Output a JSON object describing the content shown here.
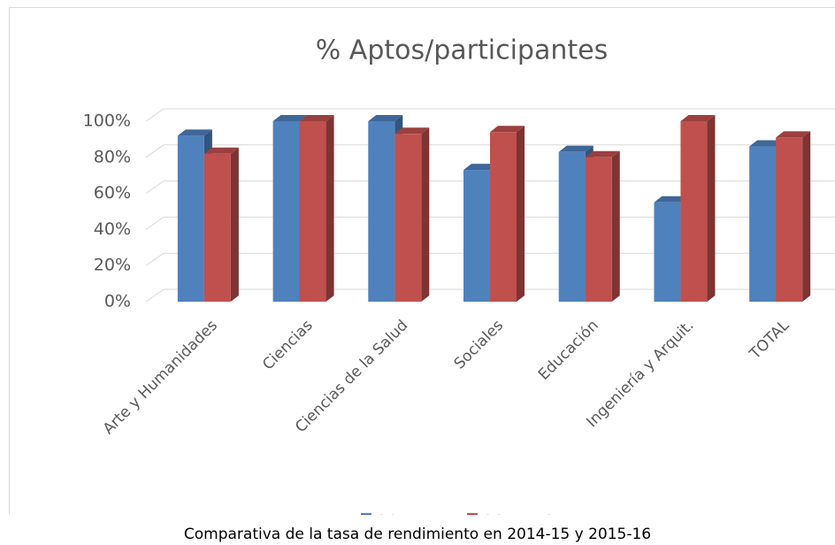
{
  "chart_data": {
    "type": "bar3d",
    "title": "% Aptos/participantes",
    "categories": [
      "Arte y Humanidades",
      "Ciencias",
      "Ciencias de la Salud",
      "Sociales",
      "Educación",
      "Ingeniería y Arquit.",
      "TOTAL"
    ],
    "series": [
      {
        "name": "2014-15",
        "color": "#4f81bd",
        "values": [
          92,
          100,
          100,
          73,
          83,
          55,
          86
        ]
      },
      {
        "name": "2015-16",
        "color": "#c0504d",
        "values": [
          82,
          100,
          93,
          94,
          80,
          100,
          91
        ]
      }
    ],
    "ylim": [
      0,
      100
    ],
    "yticks": [
      {
        "value": 0,
        "label": "0%"
      },
      {
        "value": 20,
        "label": "20%"
      },
      {
        "value": 40,
        "label": "40%"
      },
      {
        "value": 60,
        "label": "60%"
      },
      {
        "value": 80,
        "label": "80%"
      },
      {
        "value": 100,
        "label": "100%"
      }
    ],
    "grid": true,
    "legend": "bottom"
  },
  "caption": "Comparativa de la tasa de rendimiento en 2014-15 y 2015-16"
}
